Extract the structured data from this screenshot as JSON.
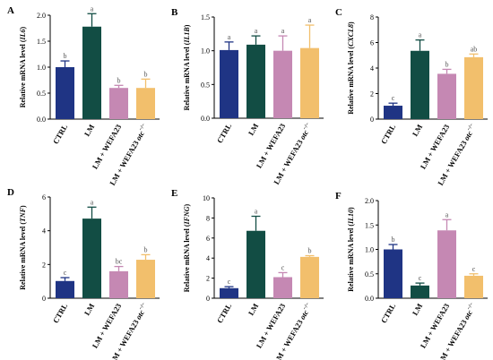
{
  "palette": {
    "bars": [
      "#1f3484",
      "#124d44",
      "#c588b3",
      "#f2bf6c"
    ],
    "axis": "#000000",
    "letter_color": "#555555"
  },
  "x_categories": [
    "CTRL",
    "LM",
    "LM + WEFA23",
    "LM + WEFA23 "
  ],
  "x_category_last_suffix": "otc",
  "x_category_last_superscript": "−/−",
  "ylabel_prefix": "Relative mRNA level (",
  "ylabel_suffix": ")",
  "chart_data": [
    {
      "panel": "A",
      "type": "bar",
      "gene": "IL6",
      "categories": [
        "CTRL",
        "LM",
        "LM + WEFA23",
        "LM + WEFA23 otc−/−"
      ],
      "values": [
        1.0,
        1.78,
        0.6,
        0.6
      ],
      "errors": [
        0.12,
        0.25,
        0.05,
        0.17
      ],
      "letters": [
        "b",
        "a",
        "b",
        "b"
      ],
      "ylim": [
        0,
        2.0
      ],
      "yticks": [
        "0.0",
        "0.5",
        "1.0",
        "1.5",
        "2.0"
      ]
    },
    {
      "panel": "B",
      "type": "bar",
      "gene": "IL1B",
      "categories": [
        "CTRL",
        "LM",
        "LM + WEFA23",
        "LM + WEFA23 otc−/−"
      ],
      "values": [
        1.01,
        1.09,
        1.0,
        1.04
      ],
      "errors": [
        0.12,
        0.13,
        0.22,
        0.34
      ],
      "letters": [
        "a",
        "a",
        "a",
        "a"
      ],
      "ylim": [
        0,
        1.5
      ],
      "yticks": [
        "0.0",
        "0.5",
        "1.0",
        "1.5"
      ]
    },
    {
      "panel": "C",
      "type": "bar",
      "gene": "CXCL8",
      "categories": [
        "CTRL",
        "LM",
        "LM + WEFA23",
        "LM + WEFA23 otc−/−"
      ],
      "values": [
        1.05,
        5.35,
        3.55,
        4.85
      ],
      "errors": [
        0.2,
        0.85,
        0.35,
        0.25
      ],
      "letters": [
        "c",
        "a",
        "b",
        "ab"
      ],
      "ylim": [
        0,
        8
      ],
      "yticks": [
        "0",
        "2",
        "4",
        "6",
        "8"
      ]
    },
    {
      "panel": "D",
      "type": "bar",
      "gene": "TNF",
      "categories": [
        "CTRL",
        "LM",
        "LM + WEFA23",
        "LM + WEFA23 otc−/−"
      ],
      "values": [
        1.02,
        4.72,
        1.6,
        2.28
      ],
      "errors": [
        0.2,
        0.68,
        0.28,
        0.3
      ],
      "letters": [
        "c",
        "a",
        "bc",
        "b"
      ],
      "ylim": [
        0,
        6
      ],
      "yticks": [
        "0",
        "2",
        "4",
        "6"
      ]
    },
    {
      "panel": "E",
      "type": "bar",
      "gene": "IFNG",
      "categories": [
        "CTRL",
        "LM",
        "LM + WEFA23",
        "LM + WEFA23 otc−/−"
      ],
      "values": [
        1.0,
        6.72,
        2.1,
        4.12
      ],
      "errors": [
        0.15,
        1.45,
        0.45,
        0.12
      ],
      "letters": [
        "c",
        "a",
        "c",
        "b"
      ],
      "ylim": [
        0,
        10
      ],
      "yticks": [
        "0",
        "2",
        "4",
        "6",
        "8",
        "10"
      ]
    },
    {
      "panel": "F",
      "type": "bar",
      "gene": "IL10",
      "categories": [
        "CTRL",
        "LM",
        "LM + WEFA23",
        "LM + WEFA23 otc−/−"
      ],
      "values": [
        1.0,
        0.26,
        1.39,
        0.46
      ],
      "errors": [
        0.1,
        0.05,
        0.22,
        0.04
      ],
      "letters": [
        "b",
        "c",
        "a",
        "c"
      ],
      "ylim": [
        0,
        2.0
      ],
      "yticks": [
        "0.0",
        "0.5",
        "1.0",
        "1.5",
        "2.0"
      ]
    }
  ]
}
